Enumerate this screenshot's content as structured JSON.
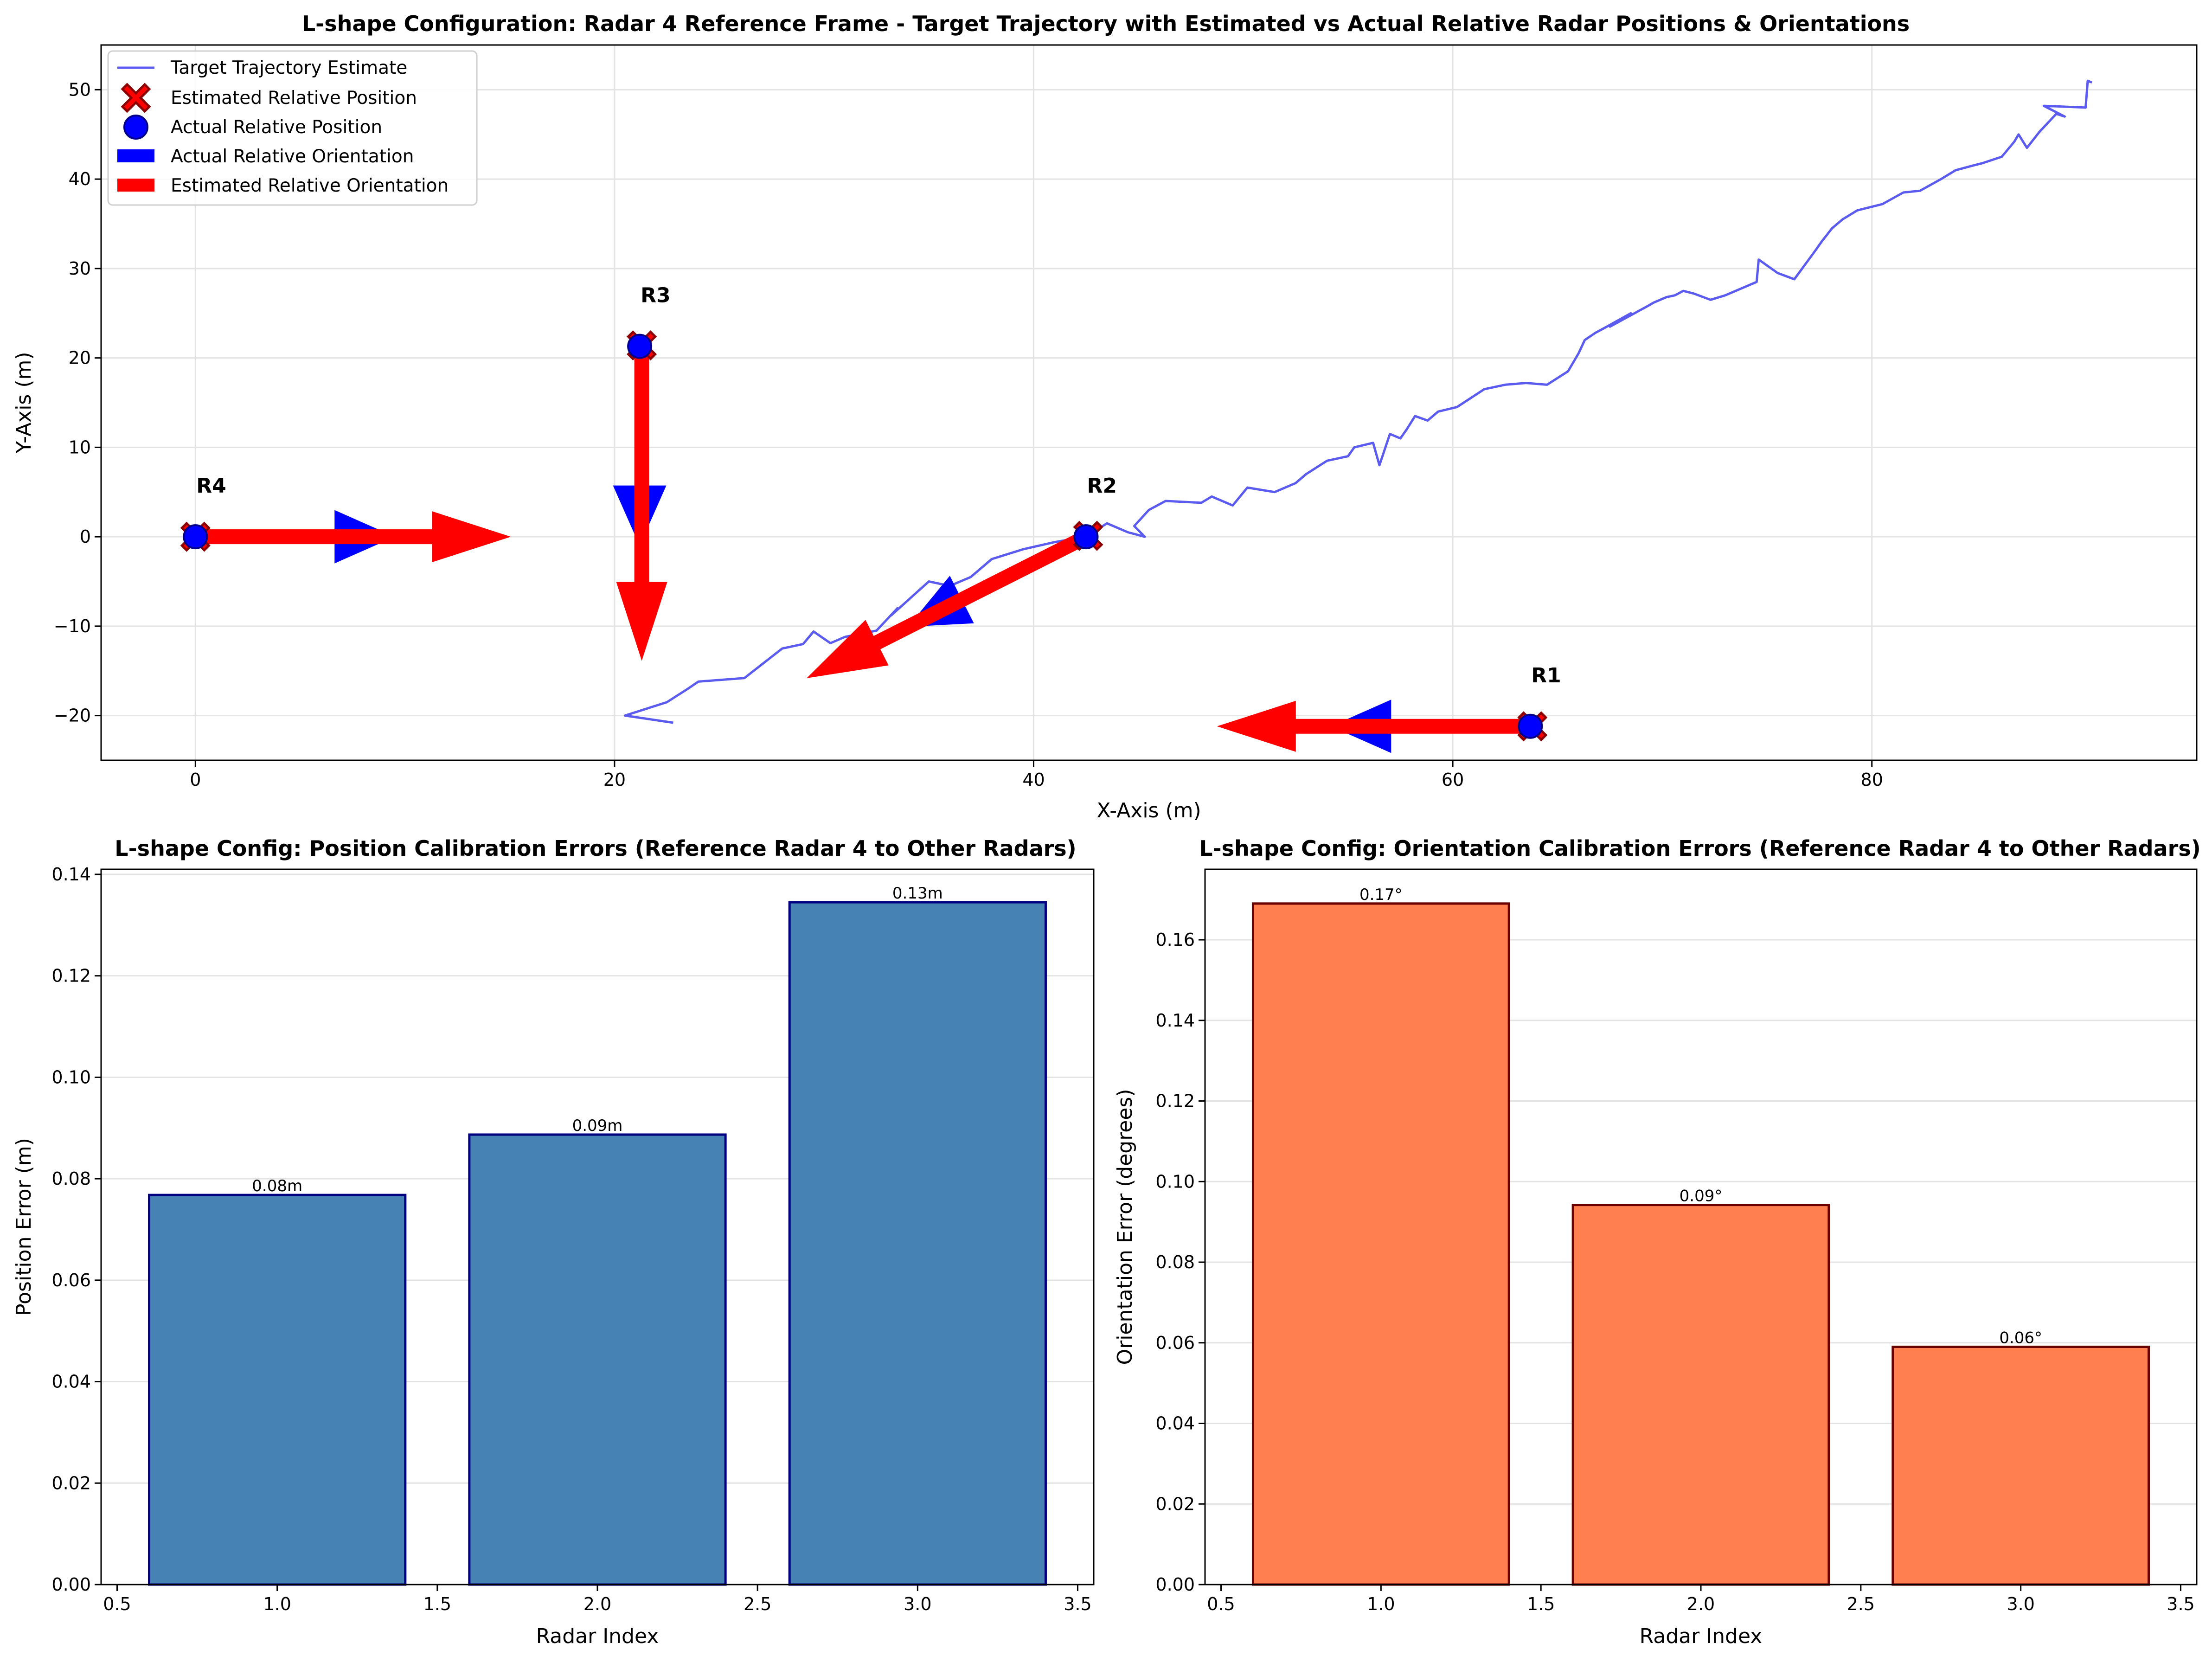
{
  "colors": {
    "trajectory": "#5b5bf0",
    "actual": "#0000ff",
    "estimated": "#ff0000",
    "estimated_edge": "#8b0000",
    "pos_bar": "#4682b4",
    "pos_bar_edge": "#000080",
    "ori_bar": "#ff7f50",
    "ori_bar_edge": "#6b0000"
  },
  "chart_data": [
    {
      "type": "line",
      "title": "L-shape Configuration: Radar 4 Reference Frame - Target Trajectory with Estimated vs Actual Relative Radar Positions & Orientations",
      "xlabel": "X-Axis (m)",
      "ylabel": "Y-Axis (m)",
      "xlim": [
        -4.5,
        95.5
      ],
      "ylim": [
        -25,
        55
      ],
      "xticks": [
        "0",
        "20",
        "40",
        "60",
        "80"
      ],
      "yticks": [
        "−20",
        "−10",
        "0",
        "10",
        "20",
        "30",
        "40",
        "50"
      ],
      "grid": true,
      "legend_position": "top-left",
      "legend": [
        "Target Trajectory Estimate",
        "Estimated Relative Position",
        "Actual Relative Position",
        "Actual Relative Orientation",
        "Estimated Relative Orientation"
      ],
      "trajectory": {
        "x": [
          22.8,
          20.5,
          22.5,
          23.5,
          24.0,
          26.2,
          28.0,
          29.0,
          29.5,
          30.3,
          31.0,
          32.5,
          33.5,
          33.2,
          35.0,
          36.0,
          37.0,
          38.0,
          39.5,
          41.0,
          42.5,
          43.5,
          44.5,
          45.3,
          44.8,
          45.5,
          46.3,
          48.0,
          48.5,
          49.5,
          50.2,
          51.5,
          52.5,
          53.0,
          54.0,
          55.0,
          55.3,
          56.2,
          56.5,
          57.0,
          57.5,
          57.8,
          58.2,
          58.8,
          59.3,
          60.2,
          61.5,
          62.5,
          63.5,
          64.5,
          65.5,
          66.0,
          66.3,
          66.8,
          67.2,
          68.5,
          67.5,
          69.3,
          69.6,
          70.2,
          70.6,
          71.0,
          71.5,
          72.3,
          73.0,
          74.0,
          74.5,
          74.6,
          75.5,
          76.3,
          77.3,
          77.6,
          78.1,
          78.6,
          79.3,
          80.5,
          81.5,
          82.3,
          83.3,
          84.0,
          84.8,
          85.3,
          86.2,
          86.8,
          87.0,
          87.4,
          88.0,
          88.8,
          89.2,
          88.2,
          90.2,
          90.3,
          90.5
        ],
        "y": [
          -20.8,
          -20.0,
          -18.5,
          -17.0,
          -16.2,
          -15.8,
          -12.5,
          -12.0,
          -10.6,
          -11.9,
          -11.2,
          -10.5,
          -8.0,
          -8.8,
          -5.0,
          -5.5,
          -4.5,
          -2.5,
          -1.4,
          -0.6,
          0.0,
          1.5,
          0.5,
          0.0,
          1.2,
          3.0,
          4.0,
          3.8,
          4.5,
          3.5,
          5.5,
          5.0,
          6.0,
          7.0,
          8.5,
          9.0,
          10.0,
          10.5,
          8.0,
          11.5,
          11.0,
          12.0,
          13.5,
          13.0,
          14.0,
          14.5,
          16.5,
          17.0,
          17.2,
          17.0,
          18.5,
          20.5,
          22.0,
          22.8,
          23.3,
          25.0,
          23.5,
          25.8,
          26.2,
          26.8,
          27.0,
          27.5,
          27.2,
          26.5,
          27.0,
          28.0,
          28.5,
          31.0,
          29.5,
          28.8,
          32.0,
          33.0,
          34.5,
          35.5,
          36.5,
          37.2,
          38.5,
          38.7,
          40.0,
          41.0,
          41.5,
          41.8,
          42.5,
          44.2,
          45.0,
          43.5,
          45.3,
          47.3,
          47.0,
          48.2,
          48.0,
          51.0,
          50.8
        ]
      },
      "radars": [
        {
          "label": "R4",
          "actual": [
            0,
            0
          ],
          "estimated": [
            0,
            0
          ],
          "actual_dir": [
            1,
            0
          ],
          "estimated_dir": [
            1,
            0
          ]
        },
        {
          "label": "R3",
          "actual": [
            21.2,
            21.3
          ],
          "estimated": [
            21.3,
            21.4
          ],
          "actual_dir": [
            0,
            -1
          ],
          "estimated_dir": [
            0,
            -1
          ]
        },
        {
          "label": "R2",
          "actual": [
            42.5,
            0
          ],
          "estimated": [
            42.6,
            0.1
          ],
          "actual_dir": [
            -0.89,
            -0.45
          ],
          "estimated_dir": [
            -0.89,
            -0.45
          ]
        },
        {
          "label": "R1",
          "actual": [
            63.7,
            -21.2
          ],
          "estimated": [
            63.8,
            -21.2
          ],
          "actual_dir": [
            -1,
            0
          ],
          "estimated_dir": [
            -1,
            0
          ]
        }
      ]
    },
    {
      "type": "bar",
      "title": "L-shape Config: Position Calibration Errors (Reference Radar 4 to Other Radars)",
      "xlabel": "Radar Index",
      "ylabel": "Position Error (m)",
      "x": [
        1,
        2,
        3
      ],
      "values": [
        0.0768,
        0.0887,
        0.1345
      ],
      "data_labels": [
        "0.08m",
        "0.09m",
        "0.13m"
      ],
      "xlim": [
        0.45,
        3.55
      ],
      "ylim": [
        0,
        0.141
      ],
      "xticks": [
        "0.5",
        "1.0",
        "1.5",
        "2.0",
        "2.5",
        "3.0",
        "3.5"
      ],
      "yticks": [
        "0.00",
        "0.02",
        "0.04",
        "0.06",
        "0.08",
        "0.10",
        "0.12",
        "0.14"
      ],
      "grid": true
    },
    {
      "type": "bar",
      "title": "L-shape Config: Orientation Calibration Errors (Reference Radar 4 to Other Radars)",
      "xlabel": "Radar Index",
      "ylabel": "Orientation Error (degrees)",
      "x": [
        1,
        2,
        3
      ],
      "values": [
        0.169,
        0.0942,
        0.059
      ],
      "data_labels": [
        "0.17°",
        "0.09°",
        "0.06°"
      ],
      "xlim": [
        0.45,
        3.55
      ],
      "ylim": [
        0,
        0.1775
      ],
      "xticks": [
        "0.5",
        "1.0",
        "1.5",
        "2.0",
        "2.5",
        "3.0",
        "3.5"
      ],
      "yticks": [
        "0.00",
        "0.02",
        "0.04",
        "0.06",
        "0.08",
        "0.10",
        "0.12",
        "0.14",
        "0.16"
      ],
      "grid": true
    }
  ]
}
